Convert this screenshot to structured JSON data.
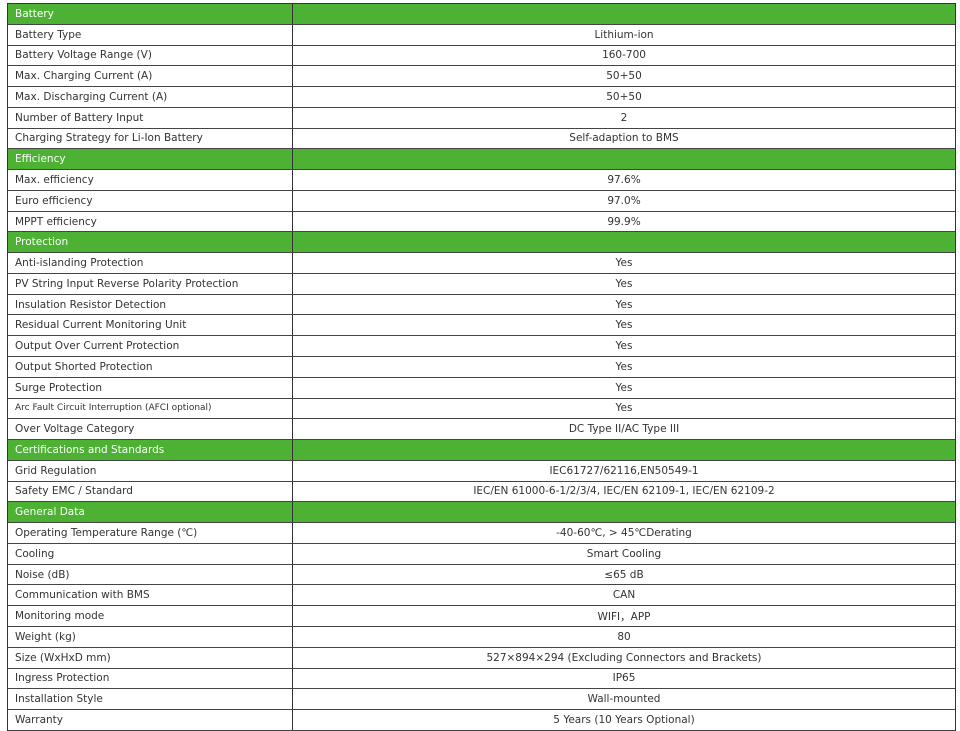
{
  "accent_color": "#4db233",
  "sections": [
    {
      "title": "Battery",
      "rows": [
        {
          "label": "Battery Type",
          "value": "Lithium-ion"
        },
        {
          "label": "Battery Voltage Range (V)",
          "value": "160-700"
        },
        {
          "label": "Max. Charging Current (A)",
          "value": "50+50"
        },
        {
          "label": "Max. Discharging Current (A)",
          "value": "50+50"
        },
        {
          "label": "Number of Battery Input",
          "value": "2"
        },
        {
          "label": "Charging Strategy for Li-Ion Battery",
          "value": "Self-adaption to BMS"
        }
      ]
    },
    {
      "title": "Efficiency",
      "rows": [
        {
          "label": "Max. efficiency",
          "value": "97.6%"
        },
        {
          "label": "Euro efficiency",
          "value": "97.0%"
        },
        {
          "label": "MPPT efficiency",
          "value": "99.9%"
        }
      ]
    },
    {
      "title": "Protection",
      "rows": [
        {
          "label": "Anti-islanding Protection",
          "value": "Yes"
        },
        {
          "label": "PV String Input Reverse Polarity Protection",
          "value": "Yes"
        },
        {
          "label": "Insulation Resistor Detection",
          "value": "Yes"
        },
        {
          "label": "Residual Current Monitoring Unit",
          "value": "Yes"
        },
        {
          "label": "Output Over Current Protection",
          "value": "Yes"
        },
        {
          "label": "Output Shorted Protection",
          "value": "Yes"
        },
        {
          "label": "Surge Protection",
          "value": "Yes"
        },
        {
          "label": "Arc Fault Circuit Interruption (AFCI optional)",
          "value": "Yes"
        },
        {
          "label": "Over Voltage Category",
          "value": "DC Type II/AC Type III"
        }
      ]
    },
    {
      "title": "Certifications and Standards",
      "rows": [
        {
          "label": "Grid Regulation",
          "value": "IEC61727/62116,EN50549-1"
        },
        {
          "label": "Safety EMC / Standard",
          "value": "IEC/EN 61000-6-1/2/3/4, IEC/EN 62109-1, IEC/EN 62109-2"
        }
      ]
    },
    {
      "title": "General Data",
      "rows": [
        {
          "label": "Operating Temperature Range (℃)",
          "value": "-40-60℃, > 45℃Derating"
        },
        {
          "label": "Cooling",
          "value": "Smart Cooling"
        },
        {
          "label": "Noise (dB)",
          "value": "≤65 dB"
        },
        {
          "label": "Communication with BMS",
          "value": "CAN"
        },
        {
          "label": "Monitoring mode",
          "value": "WIFI，APP"
        },
        {
          "label": "Weight (kg)",
          "value": "80"
        },
        {
          "label": "Size (WxHxD mm)",
          "value": "527×894×294 (Excluding Connectors and Brackets)"
        },
        {
          "label": "Ingress Protection",
          "value": "IP65"
        },
        {
          "label": "Installation Style",
          "value": "Wall-mounted"
        },
        {
          "label": "Warranty",
          "value": "5 Years (10 Years Optional)"
        }
      ]
    }
  ]
}
